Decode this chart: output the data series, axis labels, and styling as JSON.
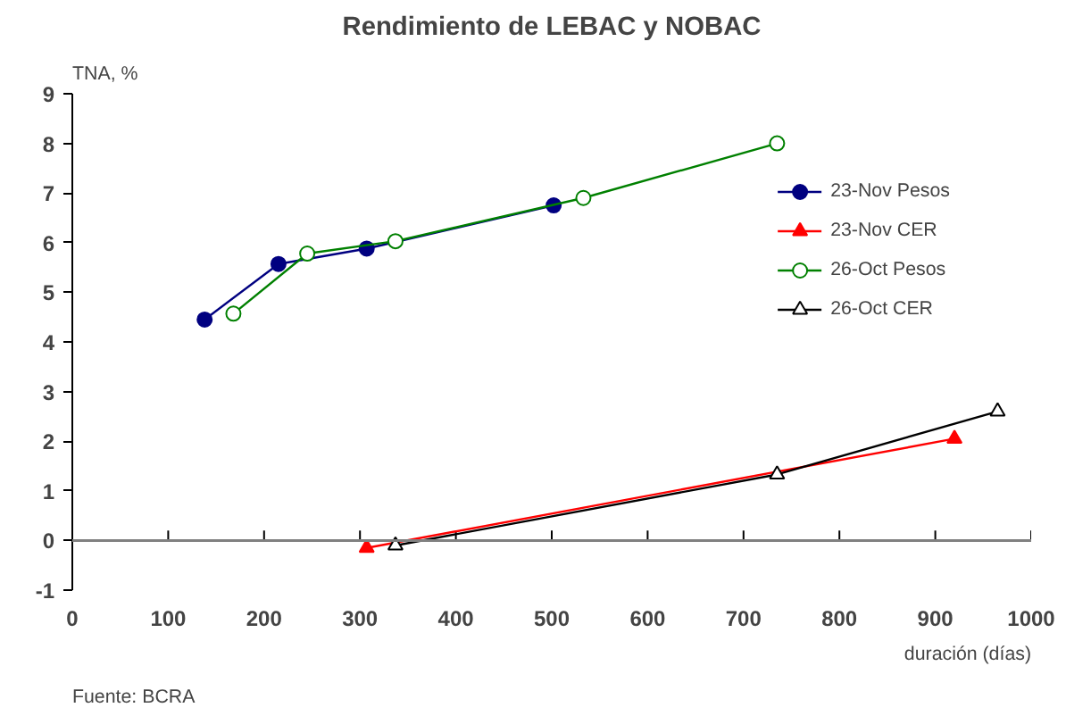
{
  "chart_data": {
    "type": "line",
    "title": "Rendimiento de LEBAC y NOBAC",
    "ylabel": "TNA, %",
    "xlabel": "duración (días)",
    "annotations": [
      "Fuente: BCRA"
    ],
    "xlim": [
      0,
      1000
    ],
    "xticks": [
      0,
      100,
      200,
      300,
      400,
      500,
      600,
      700,
      800,
      900,
      1000
    ],
    "ylim": [
      -1,
      9
    ],
    "yticks": [
      -1,
      0,
      1,
      2,
      3,
      4,
      5,
      6,
      7,
      8,
      9
    ],
    "ref_lines": [
      {
        "axis": "y",
        "value": 0,
        "color": "#808080"
      }
    ],
    "legend": "right",
    "line_style": "solid",
    "series": [
      {
        "name": "23-Nov Pesos",
        "color": "#000080",
        "marker": "circle",
        "x": [
          138,
          215,
          307,
          502
        ],
        "values": [
          4.45,
          5.57,
          5.88,
          6.75
        ]
      },
      {
        "name": "23-Nov CER",
        "color": "#ff0000",
        "marker": "triangle",
        "x": [
          307,
          920
        ],
        "values": [
          -0.15,
          2.05
        ]
      },
      {
        "name": "26-Oct Pesos",
        "color": "#008000",
        "marker": "circle_open",
        "x": [
          168,
          245,
          337,
          533,
          735
        ],
        "values": [
          4.57,
          5.78,
          6.03,
          6.9,
          8.0
        ]
      },
      {
        "name": "26-Oct CER",
        "color": "#000000",
        "marker": "triangle_open",
        "x": [
          337,
          735,
          965
        ],
        "values": [
          -0.1,
          1.33,
          2.6
        ]
      }
    ]
  }
}
